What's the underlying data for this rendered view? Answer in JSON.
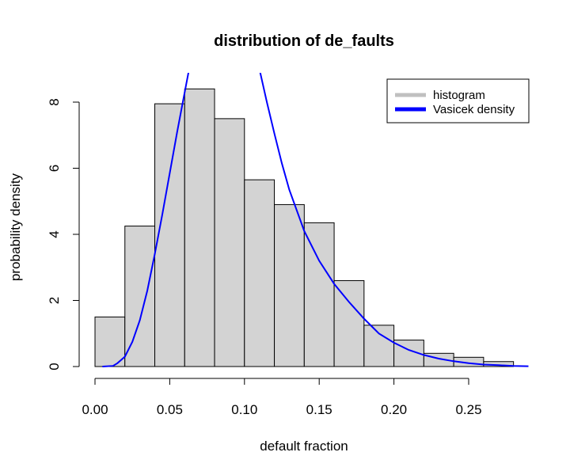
{
  "chart_data": {
    "type": "bar",
    "title": "distribution of de_faults",
    "xlabel": "default fraction",
    "ylabel": "probability density",
    "xlim": [
      0.0,
      0.29
    ],
    "ylim": [
      0,
      8.0
    ],
    "x_ticks": [
      "0.00",
      "0.05",
      "0.10",
      "0.15",
      "0.20",
      "0.25"
    ],
    "y_ticks": [
      "0",
      "2",
      "4",
      "6",
      "8"
    ],
    "histogram": {
      "name": "histogram",
      "color": "#d3d3d3",
      "bin_width": 0.02,
      "bin_starts": [
        0.0,
        0.02,
        0.04,
        0.06,
        0.08,
        0.1,
        0.12,
        0.14,
        0.16,
        0.18,
        0.2,
        0.22,
        0.24,
        0.26
      ],
      "values": [
        1.5,
        4.25,
        7.95,
        8.4,
        7.5,
        5.65,
        4.9,
        4.35,
        2.6,
        1.25,
        0.8,
        0.4,
        0.28,
        0.15
      ]
    },
    "density_curve": {
      "name": "Vasicek density",
      "color": "#0000ff",
      "x": [
        0.005,
        0.012,
        0.015,
        0.02,
        0.025,
        0.03,
        0.035,
        0.04,
        0.045,
        0.05,
        0.055,
        0.06,
        0.063,
        0.11,
        0.115,
        0.12,
        0.125,
        0.13,
        0.14,
        0.15,
        0.16,
        0.17,
        0.18,
        0.19,
        0.2,
        0.21,
        0.22,
        0.23,
        0.24,
        0.25,
        0.26,
        0.27,
        0.28,
        0.29
      ],
      "y": [
        0.0,
        0.02,
        0.1,
        0.3,
        0.75,
        1.4,
        2.3,
        3.4,
        4.6,
        5.85,
        7.1,
        8.3,
        9.0,
        9.0,
        8.0,
        7.05,
        6.15,
        5.35,
        4.1,
        3.2,
        2.5,
        1.95,
        1.45,
        1.0,
        0.72,
        0.5,
        0.35,
        0.24,
        0.16,
        0.1,
        0.06,
        0.04,
        0.02,
        0.01
      ]
    },
    "legend": {
      "position": "top-right",
      "entries": [
        {
          "label": "histogram",
          "color": "#c0c0c0"
        },
        {
          "label": "Vasicek density",
          "color": "#0000ff"
        }
      ]
    },
    "grid": false
  }
}
